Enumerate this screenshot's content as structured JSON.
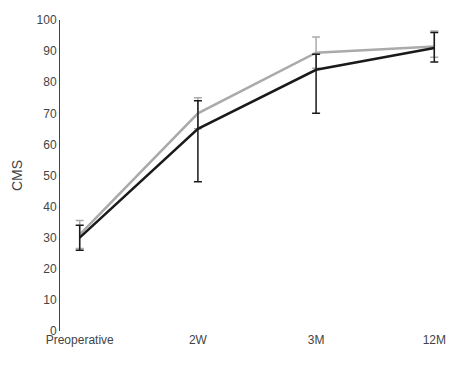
{
  "chart_data": {
    "type": "line",
    "categories": [
      "Preoperative",
      "2W",
      "3M",
      "12M"
    ],
    "series": [
      {
        "color": "#aaaaaa",
        "values": [
          31,
          70,
          89.5,
          91.5
        ],
        "yerr_lo": [
          4.5,
          5.0,
          5.0,
          3.5
        ],
        "yerr_hi": [
          4.5,
          5.0,
          5.0,
          5.0
        ]
      },
      {
        "color": "#1a1a1a",
        "values": [
          30,
          65,
          84,
          91
        ],
        "yerr_lo": [
          4.0,
          17.0,
          14.0,
          4.5
        ],
        "yerr_hi": [
          4.0,
          9.0,
          5.0,
          5.0
        ]
      }
    ],
    "ylabel": "CMS",
    "ylim": [
      0,
      100
    ],
    "yticks": [
      0,
      10,
      20,
      30,
      40,
      50,
      60,
      70,
      80,
      90,
      100
    ],
    "grid": false
  }
}
